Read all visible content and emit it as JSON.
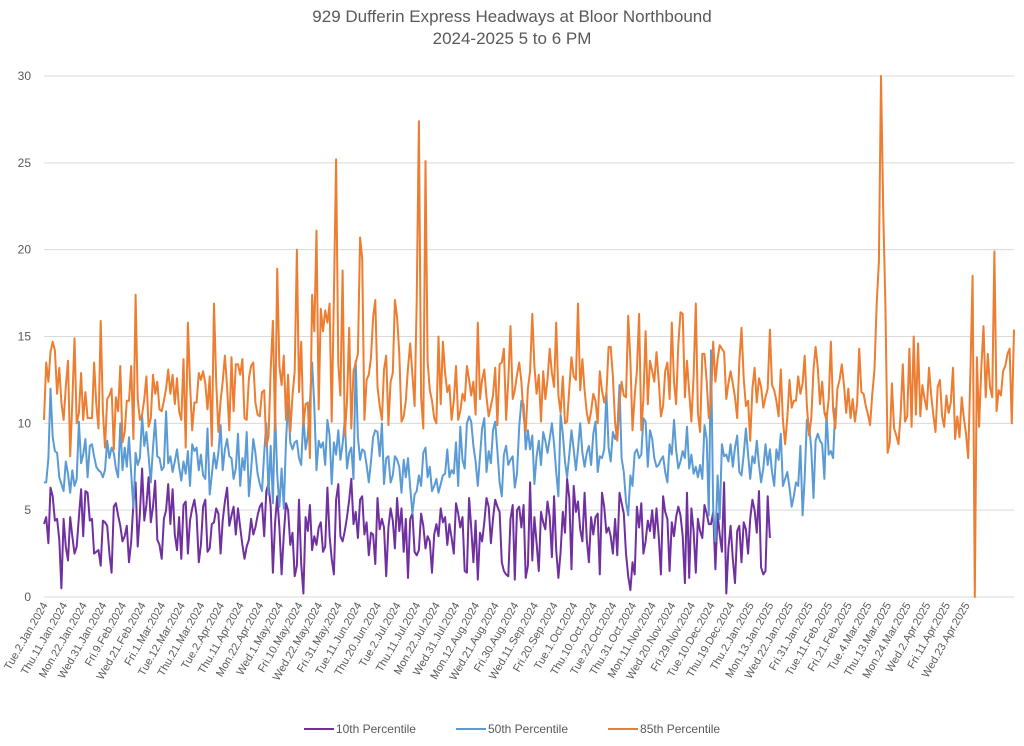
{
  "chart_data": {
    "type": "line",
    "title": "929 Dufferin Express Headways at Bloor Northbound",
    "subtitle": "2024-2025 5 to 6 PM",
    "xlabel": "",
    "ylabel": "",
    "ylim": [
      0,
      30
    ],
    "yticks": [
      0,
      5,
      10,
      15,
      20,
      25,
      30
    ],
    "grid": true,
    "legend_position": "bottom",
    "tick_every": 9,
    "tick_labels": [
      "Tue.2.Jan.2024",
      "Thu.11.Jan.2024",
      "Mon.22.Jan.2024",
      "Wed.31.Jan.2024",
      "Fri.9.Feb.2024",
      "Wed.21.Feb.2024",
      "Fri.1.Mar.2024",
      "Tue.12.Mar.2024",
      "Thu.21.Mar.2024",
      "Tue.2.Apr.2024",
      "Thu.11.Apr.2024",
      "Mon.22.Apr.2024",
      "Wed.1.May.2024",
      "Fri.10.May.2024",
      "Wed.22.May.2024",
      "Fri.31.May.2024",
      "Tue.11.Jun.2024",
      "Thu.20.Jun.2024",
      "Tue.2.Jul.2024",
      "Thu.11.Jul.2024",
      "Mon.22.Jul.2024",
      "Wed.31.Jul.2024",
      "Mon.12.Aug.2024",
      "Wed.21.Aug.2024",
      "Fri.30.Aug.2024",
      "Wed.11.Sep.2024",
      "Fri.20.Sep.2024",
      "Tue.1.Oct.2024",
      "Thu.10.Oct.2024",
      "Tue.22.Oct.2024",
      "Thu.31.Oct.2024",
      "Mon.11.Nov.2024",
      "Wed.20.Nov.2024",
      "Fri.29.Nov.2024",
      "Tue.10.Dec.2024",
      "Thu.19.Dec.2024",
      "Thu.2.Jan.2025",
      "Mon.13.Jan.2025",
      "Wed.22.Jan.2025",
      "Fri.31.Jan.2025",
      "Tue.11.Feb.2025",
      "Fri.21.Feb.2025",
      "Tue.4.Mar.2025",
      "Thu.13.Mar.2025",
      "Mon.24.Mar.2025",
      "Wed.2.Apr.2025",
      "Fri.11.Apr.2025",
      "Wed.23.Apr.2025"
    ],
    "series": [
      {
        "name": "10th Percentile",
        "color": "#7030A0",
        "values": [
          4.2,
          4.6,
          3.1,
          6.3,
          5.8,
          4.4,
          4.5,
          3.3,
          0.5,
          4.5,
          2.9,
          2.1,
          4.6,
          3.5,
          2.5,
          2.9,
          4.6,
          6.2,
          3.5,
          6.1,
          6.0,
          4.4,
          4.5,
          2.5,
          2.6,
          2.7,
          1.8,
          4.4,
          4.3,
          4.1,
          2.5,
          1.4,
          5.2,
          5.4,
          4.7,
          4.1,
          3.2,
          3.5,
          4.1,
          2.0,
          3.2,
          5.4,
          6.6,
          2.9,
          4.8,
          7.4,
          4.4,
          5.3,
          6.9,
          4.3,
          5.2,
          6.7,
          3.3,
          3.0,
          2.2,
          4.5,
          5.0,
          6.5,
          4.2,
          6.2,
          3.6,
          2.7,
          4.6,
          2.2,
          5.3,
          5.5,
          2.5,
          4.4,
          5.1,
          5.6,
          4.7,
          2.0,
          3.0,
          5.2,
          5.6,
          2.6,
          2.8,
          4.2,
          4.3,
          5.1,
          4.8,
          2.5,
          4.4,
          5.5,
          6.3,
          4.1,
          4.7,
          5.2,
          3.6,
          5.1,
          4.0,
          3.0,
          2.2,
          2.9,
          3.3,
          4.5,
          3.6,
          4.0,
          4.7,
          5.2,
          5.4,
          3.5,
          6.1,
          6.5,
          5.2,
          1.4,
          4.3,
          5.8,
          4.0,
          1.3,
          3.6,
          5.4,
          5.0,
          3.0,
          3.7,
          1.2,
          1.8,
          5.6,
          1.9,
          0.2,
          4.6,
          3.8,
          5.3,
          2.7,
          3.5,
          3.0,
          4.0,
          4.3,
          2.6,
          2.9,
          6.3,
          3.5,
          2.2,
          1.3,
          5.6,
          6.5,
          3.5,
          3.2,
          3.8,
          4.6,
          5.6,
          6.8,
          4.2,
          4.9,
          3.4,
          5.6,
          5.8,
          3.6,
          4.3,
          2.4,
          3.7,
          3.6,
          1.9,
          5.7,
          3.9,
          4.5,
          4.0,
          1.2,
          4.0,
          5.1,
          4.4,
          2.8,
          5.7,
          3.8,
          5.1,
          2.6,
          4.5,
          1.1,
          4.5,
          4.8,
          2.6,
          2.4,
          2.7,
          4.8,
          4.1,
          2.8,
          3.5,
          3.2,
          1.4,
          3.6,
          4.2,
          3.5,
          5.1,
          4.3,
          4.6,
          3.0,
          4.2,
          3.4,
          2.5,
          5.4,
          4.8,
          4.0,
          4.6,
          1.5,
          1.4,
          5.7,
          4.0,
          2.0,
          4.4,
          1.0,
          3.7,
          3.2,
          4.3,
          5.7,
          5.2,
          3.1,
          4.5,
          5.6,
          5.2,
          4.9,
          2.0,
          1.5,
          1.3,
          1.2,
          4.5,
          5.3,
          1.0,
          5.0,
          5.2,
          4.0,
          5.3,
          1.1,
          1.8,
          6.6,
          2.1,
          4.6,
          3.1,
          1.5,
          4.9,
          4.3,
          3.9,
          5.5,
          4.6,
          2.3,
          5.8,
          2.7,
          1.1,
          2.6,
          4.9,
          3.7,
          6.8,
          5.7,
          1.6,
          6.4,
          4.9,
          5.5,
          3.9,
          3.2,
          6.0,
          3.3,
          2.0,
          4.6,
          3.6,
          4.6,
          4.8,
          1.3,
          6.0,
          5.2,
          3.7,
          4.0,
          3.5,
          2.5,
          4.5,
          2.4,
          6.0,
          5.4,
          4.8,
          2.5,
          1.2,
          0.4,
          2.0,
          1.3,
          5.2,
          4.0,
          5.4,
          2.5,
          3.2,
          4.4,
          3.8,
          5.0,
          3.4,
          5.1,
          3.5,
          1.3,
          5.8,
          4.9,
          4.5,
          1.5,
          4.3,
          3.5,
          4.6,
          5.2,
          4.7,
          3.5,
          0.8,
          6.0,
          1.1,
          5.1,
          3.8,
          1.4,
          4.5,
          3.8,
          3.4,
          5.3,
          4.8,
          4.2,
          4.2,
          4.9,
          1.6,
          4.8,
          3.6,
          2.6,
          6.6,
          0.2,
          2.8,
          4.1,
          2.2,
          0.8,
          3.8,
          4.1,
          2.0,
          4.3,
          3.9,
          2.5,
          4.5,
          5.6,
          5.0,
          3.7,
          6.1,
          1.7,
          1.3,
          1.5,
          5.8,
          3.4
        ]
      },
      {
        "name": "50th Percentile",
        "color": "#5B9BD5",
        "values": [
          6.6,
          6.6,
          8.0,
          12.0,
          9.2,
          8.4,
          8.3,
          6.9,
          6.5,
          6.1,
          7.8,
          7.1,
          6.0,
          7.3,
          6.4,
          6.8,
          10.1,
          7.7,
          8.2,
          9.1,
          6.9,
          8.7,
          8.8,
          8.1,
          7.5,
          7.3,
          7.2,
          6.9,
          7.3,
          9.0,
          8.0,
          8.6,
          8.3,
          7.4,
          6.9,
          10.0,
          7.3,
          8.6,
          7.5,
          9.2,
          7.1,
          5.1,
          8.3,
          7.6,
          8.0,
          10.4,
          8.7,
          9.5,
          8.1,
          6.6,
          8.6,
          10.2,
          8.1,
          8.0,
          7.3,
          7.5,
          10.7,
          7.7,
          8.1,
          7.2,
          7.8,
          8.5,
          7.5,
          6.7,
          7.8,
          7.1,
          8.4,
          6.4,
          8.8,
          8.4,
          8.6,
          7.3,
          8.2,
          7.0,
          6.8,
          9.7,
          5.9,
          7.0,
          8.3,
          7.4,
          8.3,
          9.9,
          7.3,
          8.5,
          9.1,
          8.1,
          8.0,
          6.8,
          7.4,
          9.4,
          6.4,
          8.0,
          7.3,
          9.5,
          5.8,
          7.3,
          9.1,
          8.3,
          7.1,
          6.5,
          6.1,
          8.3,
          10.0,
          5.9,
          8.7,
          5.4,
          10.7,
          7.1,
          5.2,
          7.4,
          5.1,
          9.0,
          11.2,
          8.9,
          8.5,
          8.9,
          9.0,
          8.0,
          7.6,
          10.4,
          8.5,
          9.3,
          11.2,
          13.5,
          11.0,
          7.3,
          9.0,
          8.6,
          8.9,
          7.6,
          10.2,
          9.3,
          6.5,
          8.9,
          8.2,
          9.6,
          7.9,
          8.8,
          10.2,
          7.4,
          8.3,
          8.6,
          6.8,
          13.6,
          9.2,
          7.9,
          8.5,
          8.4,
          7.6,
          6.6,
          7.8,
          9.2,
          9.6,
          9.5,
          8.1,
          10.0,
          6.5,
          8.0,
          8.1,
          6.6,
          7.0,
          8.1,
          7.9,
          7.5,
          6.0,
          7.9,
          6.9,
          8.0,
          6.3,
          4.8,
          5.9,
          6.1,
          7.0,
          6.4,
          8.3,
          8.6,
          6.9,
          7.5,
          6.1,
          6.4,
          6.8,
          6.0,
          6.5,
          7.0,
          7.1,
          8.5,
          6.9,
          7.3,
          7.1,
          8.9,
          6.4,
          9.8,
          7.9,
          7.4,
          10.0,
          10.4,
          10.1,
          8.7,
          7.8,
          6.4,
          8.1,
          9.7,
          10.3,
          7.2,
          8.4,
          7.7,
          9.6,
          10.1,
          8.4,
          6.6,
          5.8,
          8.2,
          8.7,
          7.6,
          7.9,
          8.1,
          6.3,
          7.1,
          9.8,
          11.3,
          11.1,
          8.5,
          9.6,
          8.5,
          9.3,
          6.5,
          8.1,
          9.0,
          7.6,
          9.5,
          9.0,
          8.3,
          9.1,
          10.0,
          8.8,
          7.2,
          5.8,
          10.5,
          9.4,
          7.8,
          6.9,
          8.2,
          9.6,
          8.5,
          7.3,
          8.5,
          10.0,
          8.3,
          7.5,
          8.3,
          8.7,
          7.6,
          9.4,
          10.1,
          7.2,
          8.1,
          8.0,
          8.5,
          11.8,
          8.6,
          7.8,
          9.5,
          9.1,
          9.6,
          12.2,
          8.0,
          7.2,
          5.5,
          4.7,
          7.0,
          6.4,
          8.3,
          8.5,
          8.0,
          8.2,
          10.3,
          10.1,
          7.5,
          9.6,
          9.1,
          8.0,
          7.5,
          7.6,
          7.9,
          8.1,
          7.2,
          6.6,
          8.8,
          8.2,
          10.2,
          8.5,
          7.4,
          7.8,
          8.4,
          8.0,
          9.8,
          7.4,
          8.2,
          7.1,
          7.5,
          6.9,
          7.6,
          6.8,
          9.9,
          9.1,
          4.7,
          14.2,
          5.0,
          3.2,
          7.0,
          4.5,
          8.8,
          8.1,
          8.2,
          7.8,
          8.8,
          7.5,
          8.6,
          9.3,
          7.2,
          7.0,
          8.2,
          9.7,
          8.2,
          6.8,
          8.1,
          7.7,
          9.0,
          7.6,
          6.6,
          7.4,
          8.8,
          7.6,
          8.5,
          7.2,
          6.4,
          8.5,
          7.9,
          9.4,
          6.4,
          6.8,
          7.2,
          6.3,
          5.2,
          5.8,
          6.6,
          6.4,
          8.7,
          4.7,
          6.9,
          10.2,
          9.9,
          8.5,
          5.7,
          9.0,
          9.4,
          9.0,
          8.8,
          6.8,
          10.6,
          8.2,
          8.4,
          8.0,
          10.9
        ]
      },
      {
        "name": "85th Percentile",
        "color": "#ED7D31",
        "values": [
          10.2,
          13.5,
          12.4,
          14.1,
          14.7,
          14.2,
          11.7,
          13.2,
          11.2,
          10.2,
          12.1,
          13.6,
          8.1,
          11.2,
          14.9,
          10.0,
          10.6,
          12.9,
          10.2,
          11.8,
          10.3,
          10.3,
          10.3,
          13.5,
          11.1,
          9.7,
          15.9,
          10.7,
          8.6,
          11.4,
          11.6,
          12.0,
          8.5,
          11.5,
          10.7,
          13.3,
          8.9,
          9.5,
          11.3,
          11.3,
          13.3,
          9.1,
          17.4,
          11.4,
          10.2,
          10.5,
          11.4,
          12.7,
          9.8,
          10.3,
          12.8,
          11.7,
          12.4,
          10.8,
          10.7,
          11.3,
          12.0,
          13.1,
          11.7,
          12.8,
          11.1,
          12.6,
          10.7,
          10.2,
          13.7,
          8.6,
          15.8,
          12.3,
          9.6,
          11.2,
          11.2,
          12.9,
          12.5,
          13.0,
          12.3,
          10.8,
          12.7,
          8.7,
          16.9,
          12.4,
          9.5,
          11.3,
          12.4,
          13.9,
          12.1,
          9.6,
          13.8,
          10.7,
          13.4,
          13.4,
          12.8,
          13.7,
          10.3,
          10.2,
          12.6,
          13.3,
          13.5,
          11.2,
          10.5,
          10.4,
          11.8,
          11.9,
          8.7,
          9.2,
          13.1,
          15.9,
          9.6,
          18.9,
          13.3,
          12.2,
          13.9,
          10.2,
          12.8,
          9.5,
          11.6,
          13.0,
          20.0,
          11.8,
          14.7,
          9.9,
          11.1,
          11.2,
          8.0,
          17.4,
          15.3,
          21.1,
          10.8,
          16.6,
          15.3,
          16.5,
          15.8,
          16.9,
          10.1,
          17.3,
          25.2,
          13.4,
          11.6,
          18.8,
          9.3,
          11.3,
          15.5,
          9.7,
          13.0,
          13.5,
          14.0,
          20.7,
          19.5,
          10.2,
          12.5,
          12.8,
          13.8,
          16.1,
          17.1,
          12.1,
          11.0,
          10.2,
          13.1,
          13.9,
          9.9,
          12.4,
          12.9,
          17.1,
          16.1,
          14.0,
          10.1,
          10.4,
          11.3,
          13.2,
          14.6,
          12.8,
          11.0,
          17.0,
          27.4,
          11.5,
          9.7,
          25.1,
          13.6,
          11.9,
          11.3,
          10.3,
          10.0,
          15.0,
          11.1,
          14.7,
          12.9,
          11.8,
          12.2,
          10.2,
          11.3,
          13.3,
          10.2,
          10.7,
          11.7,
          11.3,
          13.3,
          12.5,
          11.6,
          12.4,
          10.5,
          15.8,
          11.4,
          12.5,
          13.1,
          11.5,
          10.4,
          11.0,
          11.6,
          13.2,
          9.9,
          13.4,
          13.5,
          14.3,
          10.2,
          12.5,
          15.6,
          11.4,
          11.9,
          12.8,
          13.5,
          12.4,
          10.4,
          9.5,
          12.0,
          13.0,
          16.3,
          13.3,
          11.7,
          12.8,
          10.1,
          13.0,
          11.4,
          12.5,
          14.3,
          12.9,
          12.1,
          15.8,
          11.6,
          10.6,
          12.7,
          10.0,
          10.1,
          12.0,
          13.8,
          12.7,
          12.5,
          16.9,
          11.9,
          13.7,
          11.9,
          10.6,
          10.0,
          10.7,
          11.7,
          11.3,
          10.0,
          13.0,
          11.9,
          11.2,
          11.7,
          14.4,
          14.4,
          12.7,
          10.0,
          9.0,
          11.2,
          12.4,
          11.6,
          11.5,
          16.2,
          13.6,
          9.6,
          11.6,
          13.0,
          16.3,
          9.6,
          11.4,
          15.3,
          11.1,
          13.6,
          13.0,
          12.4,
          14.1,
          12.5,
          10.4,
          11.0,
          13.0,
          13.5,
          11.4,
          15.8,
          12.4,
          11.1,
          14.5,
          16.4,
          16.3,
          11.5,
          13.6,
          11.8,
          10.1,
          12.7,
          16.9,
          10.6,
          9.5,
          14.0,
          14.0,
          12.4,
          10.3,
          11.3,
          14.7,
          12.4,
          13.7,
          14.5,
          14.3,
          14.1,
          11.4,
          12.3,
          13.0,
          12.3,
          11.5,
          10.3,
          13.5,
          15.5,
          12.6,
          11.0,
          11.3,
          9.0,
          12.0,
          13.2,
          11.2,
          12.6,
          12.1,
          10.9,
          11.5,
          12.0,
          15.4,
          12.2,
          11.9,
          11.3,
          10.4,
          13.1,
          10.2,
          8.8,
          10.3,
          12.5,
          10.9,
          11.3,
          11.3,
          12.7,
          11.7,
          12.3,
          13.9,
          11.0,
          9.3,
          10.3,
          13.1,
          14.4,
          13.2,
          11.1,
          12.4,
          10.6,
          10.2,
          11.4,
          14.7,
          10.8,
          9.7,
          12.0,
          12.5,
          13.4,
          12.2,
          10.6,
          12.0,
          10.3,
          11.4,
          10.1,
          11.1,
          14.3,
          11.8,
          11.7,
          11.0,
          10.5,
          9.9,
          11.7,
          13.1,
          16.9,
          19.3,
          30.0,
          22.3,
          16.8,
          8.3,
          8.9,
          12.3,
          9.7,
          9.3,
          8.8,
          10.6,
          13.4,
          10.1,
          10.4,
          14.3,
          9.8,
          15.0,
          10.5,
          14.6,
          10.4,
          12.2,
          11.4,
          10.8,
          13.2,
          11.6,
          10.5,
          9.5,
          12.1,
          12.5,
          10.4,
          9.8,
          11.6,
          10.6,
          11.2,
          13.2,
          9.1,
          10.4,
          9.2,
          11.5,
          10.3,
          9.4,
          8.0,
          12.9,
          18.5,
          0.0,
          13.8,
          9.8,
          13.2,
          15.6,
          11.5,
          14.0,
          12.1,
          11.5,
          19.9,
          10.7,
          11.9,
          11.6,
          13.0,
          13.3,
          14.0,
          14.3,
          10.0,
          15.4
        ]
      }
    ]
  }
}
